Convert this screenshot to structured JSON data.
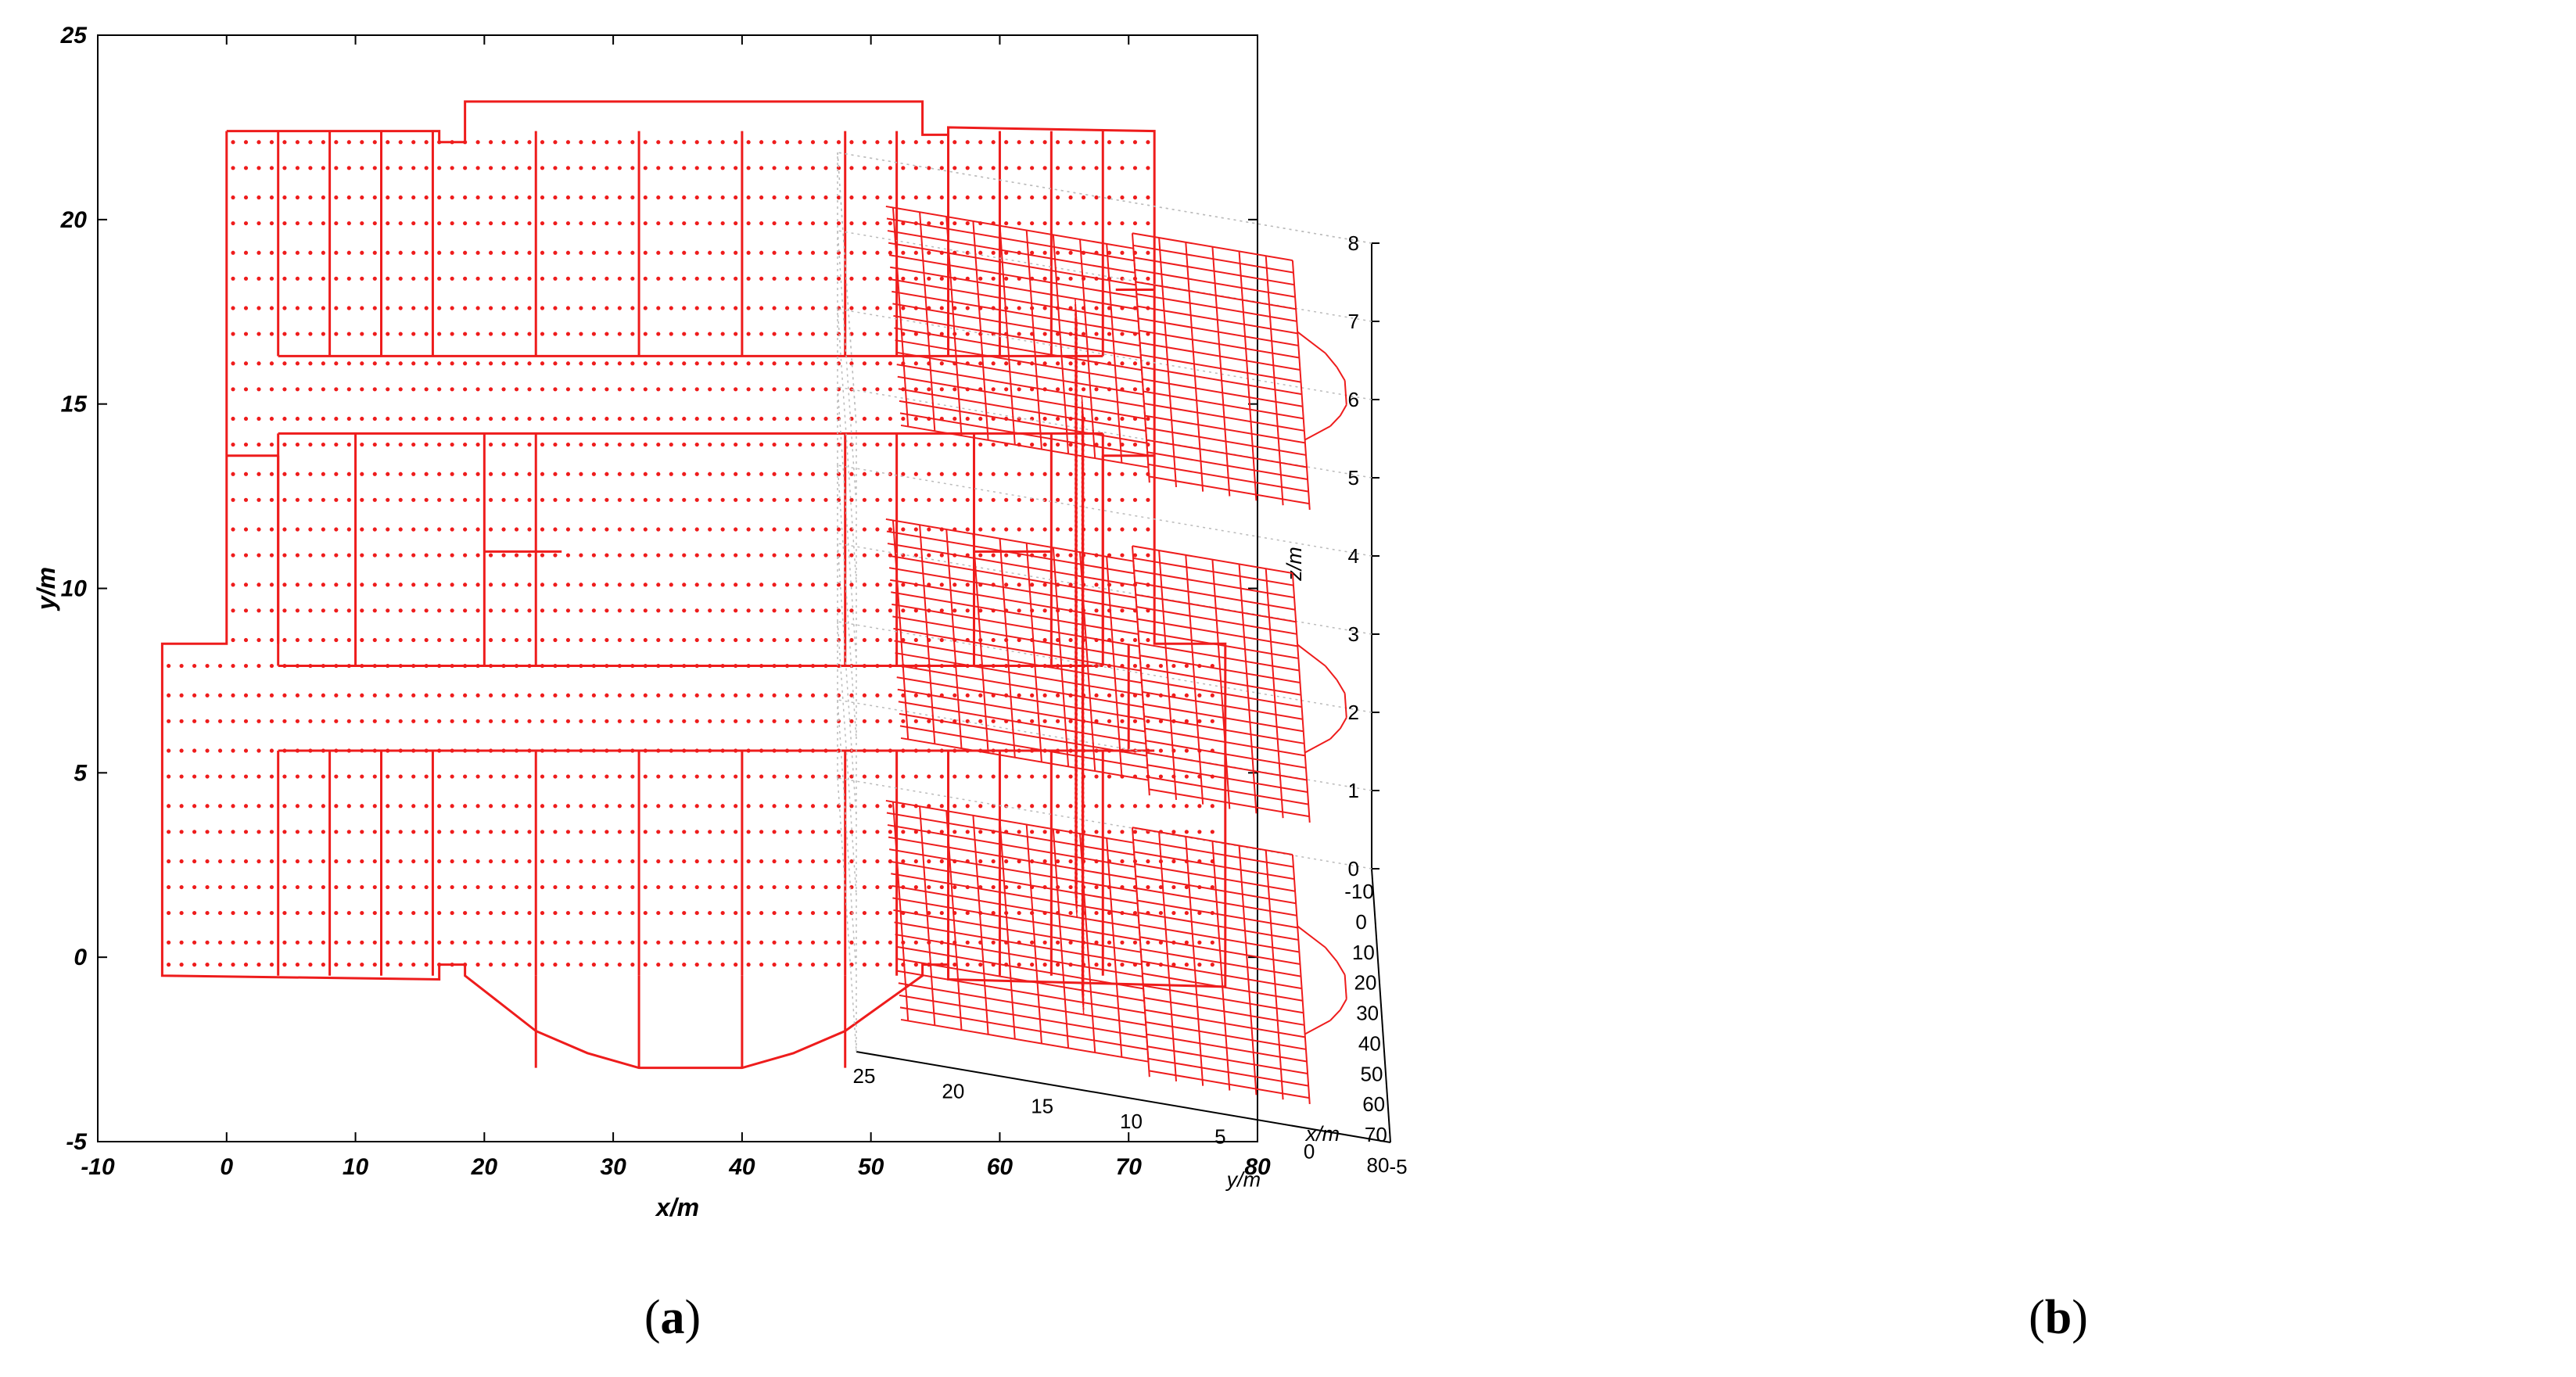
{
  "chart_data": [
    {
      "panel": "a",
      "type": "scatter",
      "description_kind": "floor plan with grid sample points",
      "xlabel": "x/m",
      "ylabel": "y/m",
      "xlim": [
        -10,
        80
      ],
      "ylim": [
        -5,
        25
      ],
      "xticks": [
        "-10",
        "0",
        "10",
        "20",
        "30",
        "40",
        "50",
        "60",
        "70",
        "80"
      ],
      "yticks": [
        "-5",
        "0",
        "5",
        "10",
        "15",
        "20",
        "25"
      ],
      "caption_letter": "a",
      "series_color": "#ee1c1c",
      "outline": [
        [
          0,
          22.4
        ],
        [
          16.5,
          22.4
        ],
        [
          16.5,
          22.1
        ],
        [
          18.5,
          22.1
        ],
        [
          18.5,
          23.2
        ],
        [
          54,
          23.2
        ],
        [
          54,
          22.3
        ],
        [
          56,
          22.3
        ],
        [
          56,
          22.5
        ],
        [
          72,
          22.4
        ],
        [
          72,
          8.5
        ],
        [
          77.5,
          8.5
        ],
        [
          77.5,
          -0.8
        ],
        [
          56,
          -0.6
        ],
        [
          56,
          -0.2
        ],
        [
          54,
          -0.2
        ],
        [
          54,
          -0.5
        ],
        [
          48,
          -2
        ],
        [
          44,
          -2.6
        ],
        [
          40,
          -3
        ],
        [
          32,
          -3
        ],
        [
          28,
          -2.6
        ],
        [
          24,
          -2
        ],
        [
          18.5,
          -0.5
        ],
        [
          18.5,
          -0.2
        ],
        [
          16.5,
          -0.2
        ],
        [
          16.5,
          -0.6
        ],
        [
          -5,
          -0.5
        ],
        [
          -5,
          8.5
        ],
        [
          0,
          8.5
        ],
        [
          0,
          22.4
        ]
      ],
      "point_grid": {
        "x_range": [
          -4.5,
          77
        ],
        "x_step": 1,
        "y_values": [
          -0.2,
          0.4,
          1.2,
          1.9,
          2.6,
          3.4,
          4.1,
          4.9,
          5.6,
          6.4,
          7.1,
          7.9,
          8.6,
          9.4,
          10.1,
          10.9,
          11.6,
          12.4,
          13.1,
          13.9,
          14.6,
          15.4,
          16.1,
          16.9,
          17.6,
          18.4,
          19.1,
          19.9,
          20.6,
          21.4,
          22.1
        ]
      }
    },
    {
      "panel": "b",
      "type": "scatter",
      "description_kind": "3D multi-floor grid model",
      "xlabel": "x/m",
      "ylabel": "y/m",
      "zlabel": "z/m",
      "xlim": [
        -10,
        80
      ],
      "ylim": [
        -5,
        25
      ],
      "zlim": [
        0,
        8
      ],
      "xticks": [
        "-10",
        "0",
        "10",
        "20",
        "30",
        "40",
        "50",
        "60",
        "70",
        "80"
      ],
      "yticks": [
        "-5",
        "0",
        "5",
        "10",
        "15",
        "20",
        "25"
      ],
      "zticks": [
        "0",
        "1",
        "2",
        "3",
        "4",
        "5",
        "6",
        "7",
        "8"
      ],
      "floors_z": [
        0.2,
        3.8,
        7.8
      ],
      "caption_letter": "b",
      "series_color": "#ee1c1c"
    }
  ]
}
